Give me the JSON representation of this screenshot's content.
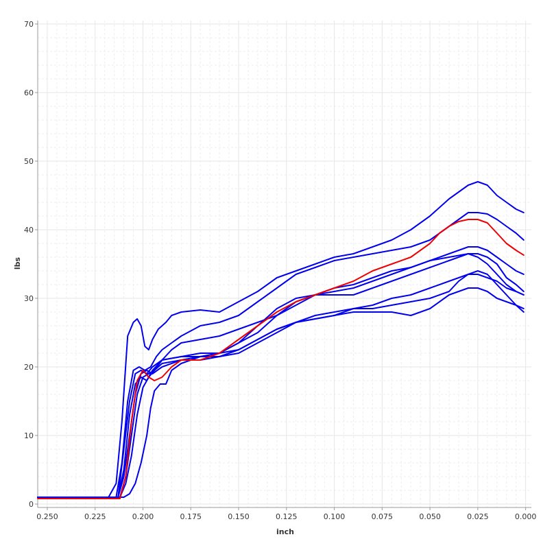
{
  "chart_data": {
    "type": "line",
    "title": "",
    "xlabel": "inch",
    "ylabel": "lbs",
    "xlim": [
      0.255,
      -0.003
    ],
    "ylim": [
      -0.5,
      70.5
    ],
    "x_reversed": true,
    "x_ticks": [
      "0.250",
      "0.225",
      "0.200",
      "0.175",
      "0.150",
      "0.125",
      "0.100",
      "0.075",
      "0.050",
      "0.025",
      "0.000"
    ],
    "y_ticks": [
      "0",
      "10",
      "20",
      "30",
      "40",
      "50",
      "60",
      "70"
    ],
    "grid": true,
    "minor_grid": true,
    "colors": {
      "blue": "#0000ee",
      "red": "#ee0000"
    },
    "series": [
      {
        "color": "#0000ee",
        "points": [
          [
            0.255,
            1.0
          ],
          [
            0.23,
            1.0
          ],
          [
            0.218,
            1.0
          ],
          [
            0.214,
            3.0
          ],
          [
            0.211,
            12.0
          ],
          [
            0.208,
            24.5
          ],
          [
            0.205,
            26.5
          ],
          [
            0.203,
            27.0
          ],
          [
            0.201,
            26.0
          ],
          [
            0.199,
            23.0
          ],
          [
            0.197,
            22.5
          ],
          [
            0.195,
            24.0
          ],
          [
            0.192,
            25.5
          ],
          [
            0.188,
            26.5
          ],
          [
            0.185,
            27.5
          ],
          [
            0.18,
            28.0
          ],
          [
            0.17,
            28.3
          ],
          [
            0.16,
            28.0
          ],
          [
            0.15,
            29.5
          ],
          [
            0.14,
            31.0
          ],
          [
            0.13,
            33.0
          ],
          [
            0.12,
            34.0
          ],
          [
            0.11,
            35.0
          ],
          [
            0.1,
            36.0
          ],
          [
            0.09,
            36.5
          ],
          [
            0.08,
            37.5
          ],
          [
            0.07,
            38.5
          ],
          [
            0.06,
            40.0
          ],
          [
            0.05,
            42.0
          ],
          [
            0.04,
            44.5
          ],
          [
            0.03,
            46.5
          ],
          [
            0.025,
            47.0
          ],
          [
            0.02,
            46.5
          ],
          [
            0.015,
            45.0
          ],
          [
            0.01,
            44.0
          ],
          [
            0.005,
            43.0
          ],
          [
            0.001,
            42.5
          ]
        ]
      },
      {
        "color": "#0000ee",
        "points": [
          [
            0.255,
            1.0
          ],
          [
            0.22,
            1.0
          ],
          [
            0.214,
            1.0
          ],
          [
            0.211,
            6.0
          ],
          [
            0.208,
            15.0
          ],
          [
            0.205,
            19.5
          ],
          [
            0.202,
            20.0
          ],
          [
            0.199,
            19.5
          ],
          [
            0.196,
            20.0
          ],
          [
            0.193,
            21.5
          ],
          [
            0.19,
            22.5
          ],
          [
            0.185,
            23.5
          ],
          [
            0.18,
            24.5
          ],
          [
            0.17,
            26.0
          ],
          [
            0.16,
            26.5
          ],
          [
            0.15,
            27.5
          ],
          [
            0.14,
            29.5
          ],
          [
            0.13,
            31.5
          ],
          [
            0.12,
            33.5
          ],
          [
            0.11,
            34.5
          ],
          [
            0.1,
            35.5
          ],
          [
            0.09,
            36.0
          ],
          [
            0.08,
            36.5
          ],
          [
            0.07,
            37.0
          ],
          [
            0.06,
            37.5
          ],
          [
            0.05,
            38.5
          ],
          [
            0.04,
            40.5
          ],
          [
            0.03,
            42.5
          ],
          [
            0.025,
            42.5
          ],
          [
            0.02,
            42.3
          ],
          [
            0.015,
            41.5
          ],
          [
            0.01,
            40.5
          ],
          [
            0.005,
            39.5
          ],
          [
            0.001,
            38.5
          ]
        ]
      },
      {
        "color": "#0000ee",
        "points": [
          [
            0.255,
            1.0
          ],
          [
            0.22,
            1.0
          ],
          [
            0.213,
            1.0
          ],
          [
            0.21,
            8.0
          ],
          [
            0.207,
            15.0
          ],
          [
            0.204,
            19.0
          ],
          [
            0.201,
            19.5
          ],
          [
            0.198,
            19.0
          ],
          [
            0.195,
            20.0
          ],
          [
            0.19,
            21.0
          ],
          [
            0.185,
            22.5
          ],
          [
            0.18,
            23.5
          ],
          [
            0.17,
            24.0
          ],
          [
            0.16,
            24.5
          ],
          [
            0.15,
            25.5
          ],
          [
            0.14,
            26.5
          ],
          [
            0.13,
            27.5
          ],
          [
            0.12,
            29.0
          ],
          [
            0.11,
            30.5
          ],
          [
            0.1,
            31.5
          ],
          [
            0.09,
            32.0
          ],
          [
            0.08,
            33.0
          ],
          [
            0.07,
            34.0
          ],
          [
            0.06,
            34.5
          ],
          [
            0.05,
            35.5
          ],
          [
            0.04,
            36.5
          ],
          [
            0.03,
            37.5
          ],
          [
            0.025,
            37.5
          ],
          [
            0.02,
            37.0
          ],
          [
            0.015,
            36.0
          ],
          [
            0.01,
            35.0
          ],
          [
            0.005,
            34.0
          ],
          [
            0.001,
            33.5
          ]
        ]
      },
      {
        "color": "#0000ee",
        "points": [
          [
            0.255,
            1.0
          ],
          [
            0.22,
            1.0
          ],
          [
            0.213,
            1.0
          ],
          [
            0.21,
            5.0
          ],
          [
            0.207,
            13.0
          ],
          [
            0.204,
            17.5
          ],
          [
            0.201,
            18.5
          ],
          [
            0.198,
            18.0
          ],
          [
            0.195,
            19.5
          ],
          [
            0.19,
            21.0
          ],
          [
            0.18,
            21.5
          ],
          [
            0.17,
            22.0
          ],
          [
            0.16,
            22.0
          ],
          [
            0.15,
            23.5
          ],
          [
            0.14,
            25.0
          ],
          [
            0.13,
            27.5
          ],
          [
            0.12,
            29.5
          ],
          [
            0.11,
            30.5
          ],
          [
            0.1,
            31.0
          ],
          [
            0.09,
            31.5
          ],
          [
            0.08,
            32.5
          ],
          [
            0.07,
            33.5
          ],
          [
            0.06,
            34.5
          ],
          [
            0.05,
            35.5
          ],
          [
            0.04,
            36.0
          ],
          [
            0.03,
            36.5
          ],
          [
            0.025,
            36.5
          ],
          [
            0.02,
            36.0
          ],
          [
            0.015,
            35.0
          ],
          [
            0.01,
            33.0
          ],
          [
            0.005,
            32.0
          ],
          [
            0.001,
            31.0
          ]
        ]
      },
      {
        "color": "#0000ee",
        "points": [
          [
            0.255,
            1.0
          ],
          [
            0.22,
            1.0
          ],
          [
            0.212,
            1.0
          ],
          [
            0.209,
            4.0
          ],
          [
            0.206,
            10.0
          ],
          [
            0.203,
            16.0
          ],
          [
            0.2,
            18.5
          ],
          [
            0.197,
            19.0
          ],
          [
            0.194,
            19.5
          ],
          [
            0.19,
            20.5
          ],
          [
            0.18,
            21.0
          ],
          [
            0.17,
            21.5
          ],
          [
            0.16,
            22.0
          ],
          [
            0.15,
            23.5
          ],
          [
            0.14,
            26.0
          ],
          [
            0.13,
            28.5
          ],
          [
            0.12,
            30.0
          ],
          [
            0.11,
            30.5
          ],
          [
            0.1,
            30.5
          ],
          [
            0.09,
            30.5
          ],
          [
            0.08,
            31.5
          ],
          [
            0.07,
            32.5
          ],
          [
            0.06,
            33.5
          ],
          [
            0.05,
            34.5
          ],
          [
            0.04,
            35.5
          ],
          [
            0.03,
            36.5
          ],
          [
            0.025,
            36.0
          ],
          [
            0.02,
            35.0
          ],
          [
            0.015,
            33.5
          ],
          [
            0.01,
            32.0
          ],
          [
            0.005,
            31.0
          ],
          [
            0.001,
            30.5
          ]
        ]
      },
      {
        "color": "#0000ee",
        "points": [
          [
            0.255,
            1.0
          ],
          [
            0.22,
            1.0
          ],
          [
            0.212,
            1.0
          ],
          [
            0.209,
            3.0
          ],
          [
            0.206,
            7.0
          ],
          [
            0.203,
            13.0
          ],
          [
            0.2,
            17.0
          ],
          [
            0.197,
            18.5
          ],
          [
            0.194,
            19.5
          ],
          [
            0.19,
            21.0
          ],
          [
            0.18,
            21.5
          ],
          [
            0.17,
            21.5
          ],
          [
            0.16,
            21.5
          ],
          [
            0.15,
            22.0
          ],
          [
            0.14,
            23.5
          ],
          [
            0.13,
            25.0
          ],
          [
            0.12,
            26.5
          ],
          [
            0.11,
            27.5
          ],
          [
            0.1,
            28.0
          ],
          [
            0.09,
            28.5
          ],
          [
            0.08,
            28.5
          ],
          [
            0.07,
            29.0
          ],
          [
            0.06,
            29.5
          ],
          [
            0.05,
            30.0
          ],
          [
            0.04,
            31.0
          ],
          [
            0.035,
            32.5
          ],
          [
            0.03,
            33.5
          ],
          [
            0.025,
            34.0
          ],
          [
            0.02,
            33.5
          ],
          [
            0.015,
            32.0
          ],
          [
            0.01,
            30.5
          ],
          [
            0.005,
            29.0
          ],
          [
            0.001,
            28.0
          ]
        ]
      },
      {
        "color": "#0000ee",
        "points": [
          [
            0.255,
            1.0
          ],
          [
            0.22,
            1.0
          ],
          [
            0.21,
            1.0
          ],
          [
            0.207,
            1.5
          ],
          [
            0.204,
            3.0
          ],
          [
            0.201,
            6.0
          ],
          [
            0.198,
            10.0
          ],
          [
            0.196,
            14.0
          ],
          [
            0.194,
            16.5
          ],
          [
            0.191,
            17.5
          ],
          [
            0.188,
            17.5
          ],
          [
            0.185,
            19.5
          ],
          [
            0.18,
            20.5
          ],
          [
            0.17,
            21.5
          ],
          [
            0.16,
            22.0
          ],
          [
            0.15,
            22.5
          ],
          [
            0.14,
            24.0
          ],
          [
            0.13,
            25.5
          ],
          [
            0.12,
            26.5
          ],
          [
            0.11,
            27.0
          ],
          [
            0.1,
            27.5
          ],
          [
            0.09,
            28.0
          ],
          [
            0.08,
            28.0
          ],
          [
            0.07,
            28.0
          ],
          [
            0.06,
            27.5
          ],
          [
            0.05,
            28.5
          ],
          [
            0.04,
            30.5
          ],
          [
            0.03,
            31.5
          ],
          [
            0.025,
            31.5
          ],
          [
            0.02,
            31.0
          ],
          [
            0.015,
            30.0
          ],
          [
            0.01,
            29.5
          ],
          [
            0.005,
            29.0
          ],
          [
            0.001,
            28.5
          ]
        ]
      },
      {
        "color": "#0000ee",
        "points": [
          [
            0.255,
            1.0
          ],
          [
            0.22,
            1.0
          ],
          [
            0.213,
            1.0
          ],
          [
            0.21,
            4.0
          ],
          [
            0.207,
            10.0
          ],
          [
            0.204,
            16.0
          ],
          [
            0.201,
            19.0
          ],
          [
            0.198,
            19.5
          ],
          [
            0.195,
            19.0
          ],
          [
            0.19,
            20.0
          ],
          [
            0.18,
            21.0
          ],
          [
            0.17,
            21.0
          ],
          [
            0.16,
            21.5
          ],
          [
            0.15,
            22.5
          ],
          [
            0.14,
            24.0
          ],
          [
            0.13,
            25.5
          ],
          [
            0.12,
            26.5
          ],
          [
            0.11,
            27.0
          ],
          [
            0.1,
            27.5
          ],
          [
            0.09,
            28.5
          ],
          [
            0.08,
            29.0
          ],
          [
            0.07,
            30.0
          ],
          [
            0.06,
            30.5
          ],
          [
            0.05,
            31.5
          ],
          [
            0.04,
            32.5
          ],
          [
            0.03,
            33.5
          ],
          [
            0.025,
            33.5
          ],
          [
            0.02,
            33.0
          ],
          [
            0.015,
            32.5
          ],
          [
            0.01,
            31.5
          ],
          [
            0.005,
            31.0
          ],
          [
            0.001,
            30.5
          ]
        ]
      },
      {
        "color": "#ee0000",
        "points": [
          [
            0.255,
            0.8
          ],
          [
            0.22,
            0.8
          ],
          [
            0.212,
            0.8
          ],
          [
            0.209,
            4.0
          ],
          [
            0.206,
            12.0
          ],
          [
            0.203,
            18.0
          ],
          [
            0.2,
            19.5
          ],
          [
            0.197,
            18.5
          ],
          [
            0.194,
            18.0
          ],
          [
            0.19,
            18.5
          ],
          [
            0.185,
            20.0
          ],
          [
            0.18,
            21.0
          ],
          [
            0.17,
            21.0
          ],
          [
            0.16,
            22.0
          ],
          [
            0.15,
            24.0
          ],
          [
            0.14,
            26.0
          ],
          [
            0.13,
            28.0
          ],
          [
            0.12,
            29.5
          ],
          [
            0.11,
            30.5
          ],
          [
            0.1,
            31.5
          ],
          [
            0.09,
            32.5
          ],
          [
            0.08,
            34.0
          ],
          [
            0.07,
            35.0
          ],
          [
            0.06,
            36.0
          ],
          [
            0.05,
            38.0
          ],
          [
            0.045,
            39.5
          ],
          [
            0.04,
            40.5
          ],
          [
            0.035,
            41.2
          ],
          [
            0.03,
            41.5
          ],
          [
            0.025,
            41.5
          ],
          [
            0.02,
            41.0
          ],
          [
            0.015,
            39.5
          ],
          [
            0.01,
            38.0
          ],
          [
            0.005,
            37.0
          ],
          [
            0.001,
            36.3
          ]
        ]
      }
    ]
  }
}
